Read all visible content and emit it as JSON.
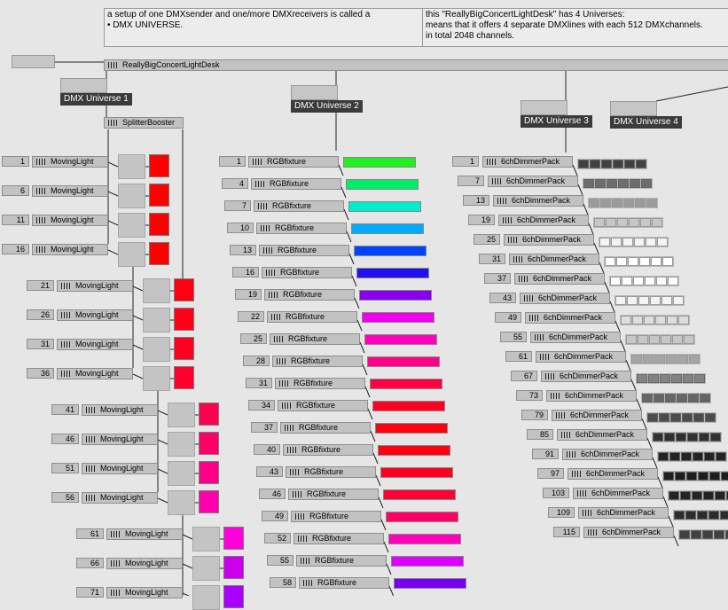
{
  "comments": {
    "left": "a setup of one DMXsender and one/more DMXreceivers is called a\n• DMX UNIVERSE.",
    "right": "this \"ReallyBigConcertLightDesk\" has 4 Universes:\nmeans that it offers 4 separate DMXlines with each 512 DMXchannels.\nin total 2048 channels."
  },
  "desk": {
    "label": "ReallyBigConcertLightDesk"
  },
  "universes": [
    "DMX Universe 1",
    "DMX Universe 2",
    "DMX Universe 3",
    "DMX Universe 4"
  ],
  "splitter": {
    "label": "SplitterBooster"
  },
  "moving_lights": [
    {
      "ch": "1",
      "label": "MovingLight",
      "color": "#ff0000"
    },
    {
      "ch": "6",
      "label": "MovingLight",
      "color": "#ff0000"
    },
    {
      "ch": "11",
      "label": "MovingLight",
      "color": "#ff0000"
    },
    {
      "ch": "16",
      "label": "MovingLight",
      "color": "#ff0000"
    },
    {
      "ch": "21",
      "label": "MovingLight",
      "color": "#ff0010"
    },
    {
      "ch": "26",
      "label": "MovingLight",
      "color": "#ff0018"
    },
    {
      "ch": "31",
      "label": "MovingLight",
      "color": "#ff0022"
    },
    {
      "ch": "36",
      "label": "MovingLight",
      "color": "#ff002c"
    },
    {
      "ch": "41",
      "label": "MovingLight",
      "color": "#ff0050"
    },
    {
      "ch": "46",
      "label": "MovingLight",
      "color": "#ff0066"
    },
    {
      "ch": "51",
      "label": "MovingLight",
      "color": "#ff0088"
    },
    {
      "ch": "56",
      "label": "MovingLight",
      "color": "#ff00aa"
    },
    {
      "ch": "61",
      "label": "MovingLight",
      "color": "#ff00dd"
    },
    {
      "ch": "66",
      "label": "MovingLight",
      "color": "#cc00ee"
    },
    {
      "ch": "71",
      "label": "MovingLight",
      "color": "#aa00ff"
    }
  ],
  "rgb_fixtures": [
    {
      "ch": "1",
      "label": "RGBfixture",
      "color": "#22ee22"
    },
    {
      "ch": "4",
      "label": "RGBfixture",
      "color": "#00ee66"
    },
    {
      "ch": "7",
      "label": "RGBfixture",
      "color": "#00eecc"
    },
    {
      "ch": "10",
      "label": "RGBfixture",
      "color": "#00aaff"
    },
    {
      "ch": "13",
      "label": "RGBfixture",
      "color": "#0044ff"
    },
    {
      "ch": "16",
      "label": "RGBfixture",
      "color": "#2211ee"
    },
    {
      "ch": "19",
      "label": "RGBfixture",
      "color": "#8800ee"
    },
    {
      "ch": "22",
      "label": "RGBfixture",
      "color": "#ee00ee"
    },
    {
      "ch": "25",
      "label": "RGBfixture",
      "color": "#ff00bb"
    },
    {
      "ch": "28",
      "label": "RGBfixture",
      "color": "#ff0088"
    },
    {
      "ch": "31",
      "label": "RGBfixture",
      "color": "#ff0044"
    },
    {
      "ch": "34",
      "label": "RGBfixture",
      "color": "#ff0022"
    },
    {
      "ch": "37",
      "label": "RGBfixture",
      "color": "#ff0011"
    },
    {
      "ch": "40",
      "label": "RGBfixture",
      "color": "#ff0011"
    },
    {
      "ch": "43",
      "label": "RGBfixture",
      "color": "#ff0022"
    },
    {
      "ch": "46",
      "label": "RGBfixture",
      "color": "#ff0033"
    },
    {
      "ch": "49",
      "label": "RGBfixture",
      "color": "#ff0066"
    },
    {
      "ch": "52",
      "label": "RGBfixture",
      "color": "#ff00bb"
    },
    {
      "ch": "55",
      "label": "RGBfixture",
      "color": "#dd00ff"
    },
    {
      "ch": "58",
      "label": "RGBfixture",
      "color": "#7700ee"
    }
  ],
  "dimmer_packs": [
    {
      "ch": "1",
      "label": "6chDimmerPack",
      "level": 0.15
    },
    {
      "ch": "7",
      "label": "6chDimmerPack",
      "level": 0.35
    },
    {
      "ch": "13",
      "label": "6chDimmerPack",
      "level": 0.55
    },
    {
      "ch": "19",
      "label": "6chDimmerPack",
      "level": 0.75
    },
    {
      "ch": "25",
      "label": "6chDimmerPack",
      "level": 0.95
    },
    {
      "ch": "31",
      "label": "6chDimmerPack",
      "level": 1.0
    },
    {
      "ch": "37",
      "label": "6chDimmerPack",
      "level": 1.0
    },
    {
      "ch": "43",
      "label": "6chDimmerPack",
      "level": 0.95
    },
    {
      "ch": "49",
      "label": "6chDimmerPack",
      "level": 0.85
    },
    {
      "ch": "55",
      "label": "6chDimmerPack",
      "level": 0.75
    },
    {
      "ch": "61",
      "label": "6chDimmerPack",
      "level": 0.6
    },
    {
      "ch": "67",
      "label": "6chDimmerPack",
      "level": 0.45
    },
    {
      "ch": "73",
      "label": "6chDimmerPack",
      "level": 0.32
    },
    {
      "ch": "79",
      "label": "6chDimmerPack",
      "level": 0.2
    },
    {
      "ch": "85",
      "label": "6chDimmerPack",
      "level": 0.08
    },
    {
      "ch": "91",
      "label": "6chDimmerPack",
      "level": 0.02
    },
    {
      "ch": "97",
      "label": "6chDimmerPack",
      "level": 0.0
    },
    {
      "ch": "103",
      "label": "6chDimmerPack",
      "level": 0.02
    },
    {
      "ch": "109",
      "label": "6chDimmerPack",
      "level": 0.06
    },
    {
      "ch": "115",
      "label": "6chDimmerPack",
      "level": 0.15
    }
  ]
}
